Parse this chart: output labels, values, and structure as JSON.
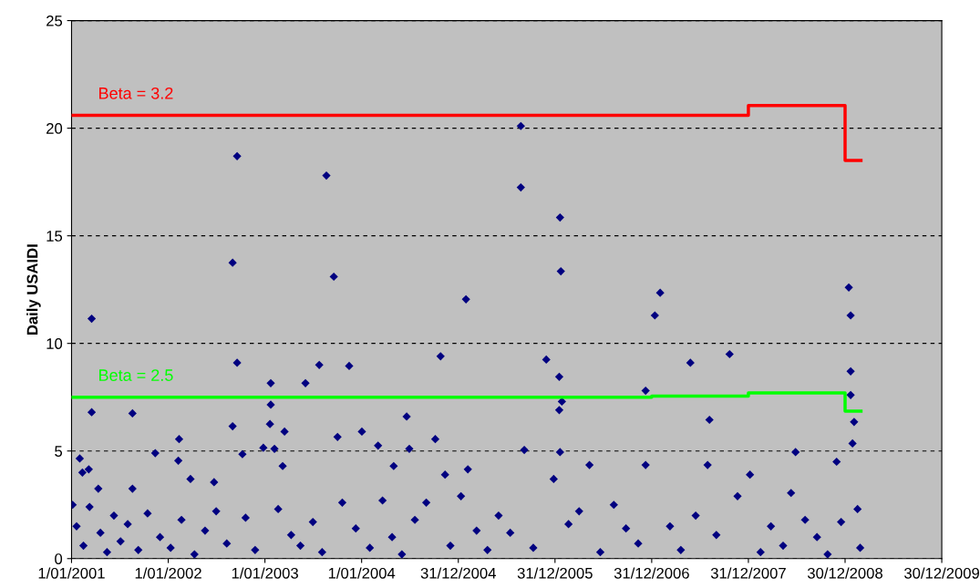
{
  "chart_data": {
    "type": "scatter",
    "ylabel": "Daily USAIDI",
    "xlim": [
      "2001-01-01",
      "2009-12-30"
    ],
    "xticks": [
      {
        "value": "2001-01-01",
        "label": "1/01/2001"
      },
      {
        "value": "2002-01-01",
        "label": "1/01/2002"
      },
      {
        "value": "2003-01-01",
        "label": "1/01/2003"
      },
      {
        "value": "2004-01-01",
        "label": "1/01/2004"
      },
      {
        "value": "2004-12-31",
        "label": "31/12/2004"
      },
      {
        "value": "2005-12-31",
        "label": "31/12/2005"
      },
      {
        "value": "2006-12-31",
        "label": "31/12/2006"
      },
      {
        "value": "2007-12-31",
        "label": "31/12/2007"
      },
      {
        "value": "2008-12-30",
        "label": "30/12/2008"
      },
      {
        "value": "2009-12-30",
        "label": "30/12/2009"
      }
    ],
    "ylim": [
      0,
      25
    ],
    "yticks": [
      0,
      5,
      10,
      15,
      20,
      25
    ],
    "grid": "y",
    "legend": false,
    "series": [
      {
        "marker": "diamond",
        "color": "#000080",
        "x": [
          "2001-03-18",
          "2001-03-18",
          "2001-02-01",
          "2001-02-11",
          "2001-03-07",
          "2001-04-12",
          "2001-08-19",
          "2001-08-19",
          "2001-11-13",
          "2002-02-11",
          "2002-02-08",
          "2002-03-26",
          "2002-06-23",
          "2002-09-01",
          "2002-09-18",
          "2002-09-18",
          "2002-09-01",
          "2002-10-08",
          "2002-12-26",
          "2003-01-23",
          "2003-01-23",
          "2003-01-20",
          "2003-02-06",
          "2003-03-16",
          "2003-03-09",
          "2003-06-03",
          "2003-07-25",
          "2003-08-21",
          "2003-09-18",
          "2003-10-02",
          "2003-11-15",
          "2004-01-02",
          "2004-03-03",
          "2004-05-01",
          "2004-06-19",
          "2004-06-29",
          "2004-10-05",
          "2004-10-25",
          "2004-11-11",
          "2005-01-29",
          "2005-02-05",
          "2005-08-24",
          "2005-08-24",
          "2005-09-06",
          "2006-01-19",
          "2006-01-22",
          "2005-11-28",
          "2006-01-16",
          "2006-01-26",
          "2006-01-16",
          "2006-01-19",
          "2005-12-26",
          "2006-05-10",
          "2006-12-08",
          "2007-01-12",
          "2007-02-01",
          "2006-12-08",
          "2007-05-26",
          "2007-08-06",
          "2007-07-30",
          "2007-10-21",
          "2008-01-06",
          "2008-06-26",
          "2008-06-09",
          "2008-11-28",
          "2009-01-13",
          "2009-01-20",
          "2009-01-20",
          "2009-01-20",
          "2009-02-02",
          "2009-01-27",
          "2001-01-05",
          "2001-01-20",
          "2001-02-15",
          "2001-03-10",
          "2001-04-20",
          "2001-05-15",
          "2001-06-10",
          "2001-07-05",
          "2001-08-01",
          "2001-09-10",
          "2001-10-15",
          "2001-12-01",
          "2002-01-10",
          "2002-02-20",
          "2002-04-10",
          "2002-05-20",
          "2002-07-01",
          "2002-08-10",
          "2002-10-20",
          "2002-11-25",
          "2003-02-20",
          "2003-04-10",
          "2003-05-15",
          "2003-07-01",
          "2003-08-05",
          "2003-10-20",
          "2003-12-10",
          "2004-02-01",
          "2004-03-20",
          "2004-04-25",
          "2004-06-01",
          "2004-07-20",
          "2004-09-01",
          "2004-12-01",
          "2005-01-10",
          "2005-03-10",
          "2005-04-20",
          "2005-06-01",
          "2005-07-15",
          "2005-10-10",
          "2006-02-20",
          "2006-04-01",
          "2006-06-20",
          "2006-08-10",
          "2006-09-25",
          "2006-11-10",
          "2007-03-10",
          "2007-04-20",
          "2007-06-15",
          "2007-09-01",
          "2007-11-20",
          "2008-02-15",
          "2008-03-25",
          "2008-05-10",
          "2008-08-01",
          "2008-09-15",
          "2008-10-25",
          "2008-12-15",
          "2009-02-15",
          "2009-02-25"
        ],
        "values": [
          11.15,
          6.8,
          4.65,
          4.0,
          4.15,
          3.25,
          6.75,
          3.25,
          4.9,
          5.55,
          4.55,
          3.7,
          3.55,
          13.75,
          18.7,
          9.1,
          6.15,
          4.85,
          5.15,
          8.15,
          7.15,
          6.25,
          5.1,
          5.9,
          4.3,
          8.15,
          9.0,
          17.8,
          13.1,
          5.65,
          8.95,
          5.9,
          5.25,
          4.3,
          6.6,
          5.1,
          5.55,
          9.4,
          3.9,
          12.05,
          4.15,
          20.1,
          17.25,
          5.05,
          15.85,
          13.35,
          9.25,
          8.45,
          7.3,
          6.9,
          4.95,
          3.7,
          4.35,
          7.8,
          11.3,
          12.35,
          4.35,
          9.1,
          6.45,
          4.35,
          9.5,
          3.9,
          4.95,
          3.05,
          4.5,
          12.6,
          11.3,
          8.7,
          7.6,
          6.35,
          5.35,
          2.5,
          1.5,
          0.6,
          2.4,
          1.2,
          0.3,
          2.0,
          0.8,
          1.6,
          0.4,
          2.1,
          1.0,
          0.5,
          1.8,
          0.2,
          1.3,
          2.2,
          0.7,
          1.9,
          0.4,
          2.3,
          1.1,
          0.6,
          1.7,
          0.3,
          2.6,
          1.4,
          0.5,
          2.7,
          1.0,
          0.2,
          1.8,
          2.6,
          0.6,
          2.9,
          1.3,
          0.4,
          2.0,
          1.2,
          0.5,
          1.6,
          2.2,
          0.3,
          2.5,
          1.4,
          0.7,
          1.5,
          0.4,
          2.0,
          1.1,
          2.9,
          0.3,
          1.5,
          0.6,
          1.8,
          1.0,
          0.2,
          1.7,
          2.3,
          0.5
        ]
      },
      {
        "type": "step",
        "name": "Beta = 3.2",
        "color": "#ff0000",
        "x": [
          "2001-01-01",
          "2006-12-31",
          "2007-12-31",
          "2008-12-30",
          "2009-02-28"
        ],
        "values": [
          20.6,
          20.6,
          21.05,
          18.5,
          18.5
        ]
      },
      {
        "type": "step",
        "name": "Beta = 2.5",
        "color": "#00ff00",
        "x": [
          "2001-01-01",
          "2006-12-31",
          "2007-12-31",
          "2008-12-30",
          "2009-02-28"
        ],
        "values": [
          7.5,
          7.55,
          7.7,
          6.85,
          6.85
        ]
      }
    ]
  }
}
